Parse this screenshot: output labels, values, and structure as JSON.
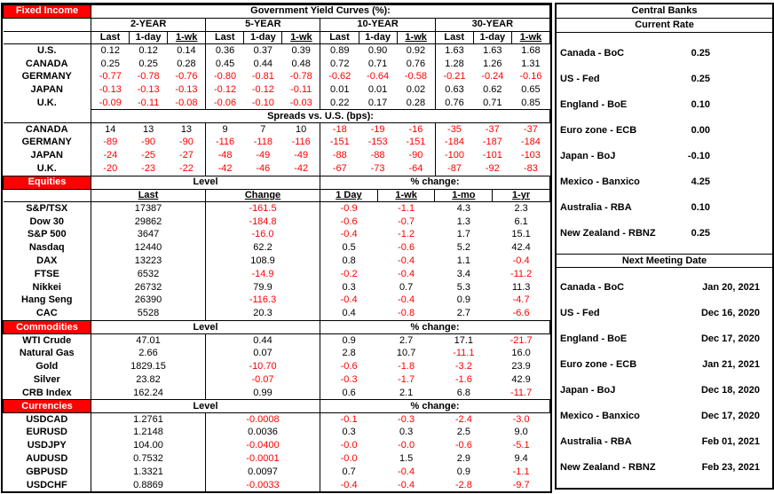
{
  "colors": {
    "section_header_bg": "#FF0000",
    "section_header_text": "#FFFFFF",
    "negative_value": "#FF0000",
    "border": "#000000"
  },
  "fixed_income": {
    "section_label": "Fixed Income",
    "title": "Government Yield Curves (%):",
    "groups": [
      "2-YEAR",
      "5-YEAR",
      "10-YEAR",
      "30-YEAR"
    ],
    "sub_headers": [
      "Last",
      "1-day",
      "1-wk"
    ],
    "rows": [
      {
        "label": "U.S.",
        "values": [
          "0.12",
          "0.12",
          "0.14",
          "0.36",
          "0.37",
          "0.39",
          "0.89",
          "0.90",
          "0.92",
          "1.63",
          "1.63",
          "1.68"
        ]
      },
      {
        "label": "CANADA",
        "values": [
          "0.25",
          "0.25",
          "0.28",
          "0.45",
          "0.44",
          "0.48",
          "0.72",
          "0.71",
          "0.76",
          "1.28",
          "1.26",
          "1.31"
        ]
      },
      {
        "label": "GERMANY",
        "values": [
          "-0.77",
          "-0.78",
          "-0.76",
          "-0.80",
          "-0.81",
          "-0.78",
          "-0.62",
          "-0.64",
          "-0.58",
          "-0.21",
          "-0.24",
          "-0.16"
        ]
      },
      {
        "label": "JAPAN",
        "values": [
          "-0.13",
          "-0.13",
          "-0.13",
          "-0.12",
          "-0.12",
          "-0.11",
          "0.01",
          "0.01",
          "0.02",
          "0.63",
          "0.62",
          "0.65"
        ]
      },
      {
        "label": "U.K.",
        "values": [
          "-0.09",
          "-0.11",
          "-0.08",
          "-0.06",
          "-0.10",
          "-0.03",
          "0.22",
          "0.17",
          "0.28",
          "0.76",
          "0.71",
          "0.85"
        ]
      }
    ],
    "spreads_title": "Spreads vs. U.S. (bps):",
    "spreads_rows": [
      {
        "label": "CANADA",
        "values": [
          "14",
          "13",
          "13",
          "9",
          "7",
          "10",
          "-18",
          "-19",
          "-16",
          "-35",
          "-37",
          "-37"
        ]
      },
      {
        "label": "GERMANY",
        "values": [
          "-89",
          "-90",
          "-90",
          "-116",
          "-118",
          "-116",
          "-151",
          "-153",
          "-151",
          "-184",
          "-187",
          "-184"
        ]
      },
      {
        "label": "JAPAN",
        "values": [
          "-24",
          "-25",
          "-27",
          "-48",
          "-49",
          "-49",
          "-88",
          "-88",
          "-90",
          "-100",
          "-101",
          "-103"
        ]
      },
      {
        "label": "U.K.",
        "values": [
          "-20",
          "-23",
          "-22",
          "-42",
          "-46",
          "-42",
          "-67",
          "-73",
          "-64",
          "-87",
          "-92",
          "-83"
        ]
      }
    ]
  },
  "equities": {
    "section_label": "Equities",
    "level_header": "Level",
    "pct_header": "% change:",
    "col_headers": [
      "Last",
      "Change",
      "1 Day",
      "1-wk",
      "1-mo",
      "1-yr"
    ],
    "rows": [
      {
        "label": "S&P/TSX",
        "values": [
          "17387",
          "-161.5",
          "-0.9",
          "-1.1",
          "4.3",
          "2.3"
        ]
      },
      {
        "label": "Dow 30",
        "values": [
          "29862",
          "-184.8",
          "-0.6",
          "-0.7",
          "1.3",
          "6.1"
        ]
      },
      {
        "label": "S&P 500",
        "values": [
          "3647",
          "-16.0",
          "-0.4",
          "-1.2",
          "1.7",
          "15.1"
        ]
      },
      {
        "label": "Nasdaq",
        "values": [
          "12440",
          "62.2",
          "0.5",
          "-0.6",
          "5.2",
          "42.4"
        ]
      },
      {
        "label": "DAX",
        "values": [
          "13223",
          "108.9",
          "0.8",
          "-0.4",
          "1.1",
          "-0.4"
        ]
      },
      {
        "label": "FTSE",
        "values": [
          "6532",
          "-14.9",
          "-0.2",
          "-0.4",
          "3.4",
          "-11.2"
        ]
      },
      {
        "label": "Nikkei",
        "values": [
          "26732",
          "79.9",
          "0.3",
          "0.7",
          "5.3",
          "11.3"
        ]
      },
      {
        "label": "Hang Seng",
        "values": [
          "26390",
          "-116.3",
          "-0.4",
          "-0.4",
          "0.9",
          "-4.7"
        ]
      },
      {
        "label": "CAC",
        "values": [
          "5528",
          "20.3",
          "0.4",
          "-0.8",
          "2.7",
          "-6.6"
        ]
      }
    ]
  },
  "commodities": {
    "section_label": "Commodities",
    "level_header": "Level",
    "pct_header": "% change:",
    "rows": [
      {
        "label": "WTI Crude",
        "values": [
          "47.01",
          "0.44",
          "0.9",
          "2.7",
          "17.1",
          "-21.7"
        ]
      },
      {
        "label": "Natural Gas",
        "values": [
          "2.66",
          "0.07",
          "2.8",
          "10.7",
          "-11.1",
          "16.0"
        ]
      },
      {
        "label": "Gold",
        "values": [
          "1829.15",
          "-10.70",
          "-0.6",
          "-1.8",
          "-3.2",
          "23.9"
        ]
      },
      {
        "label": "Silver",
        "values": [
          "23.82",
          "-0.07",
          "-0.3",
          "-1.7",
          "-1.6",
          "42.9"
        ]
      },
      {
        "label": "CRB Index",
        "values": [
          "162.24",
          "0.99",
          "0.6",
          "2.1",
          "6.8",
          "-11.7"
        ]
      }
    ]
  },
  "currencies": {
    "section_label": "Currencies",
    "level_header": "Level",
    "pct_header": "% change:",
    "rows": [
      {
        "label": "USDCAD",
        "values": [
          "1.2761",
          "-0.0008",
          "-0.1",
          "-0.3",
          "-2.4",
          "-3.0"
        ]
      },
      {
        "label": "EURUSD",
        "values": [
          "1.2148",
          "0.0036",
          "0.3",
          "0.3",
          "2.5",
          "9.0"
        ]
      },
      {
        "label": "USDJPY",
        "values": [
          "104.00",
          "-0.0400",
          "-0.0",
          "-0.0",
          "-0.6",
          "-5.1"
        ]
      },
      {
        "label": "AUDUSD",
        "values": [
          "0.7532",
          "-0.0001",
          "-0.0",
          "1.5",
          "2.9",
          "9.4"
        ]
      },
      {
        "label": "GBPUSD",
        "values": [
          "1.3321",
          "0.0097",
          "0.7",
          "-0.4",
          "0.9",
          "-1.1"
        ]
      },
      {
        "label": "USDCHF",
        "values": [
          "0.8869",
          "-0.0033",
          "-0.4",
          "-0.4",
          "-2.8",
          "-9.7"
        ]
      }
    ]
  },
  "central_banks": {
    "title": "Central Banks",
    "current_rate_header": "Current Rate",
    "rates": [
      {
        "name": "Canada - BoC",
        "value": "0.25"
      },
      {
        "name": "US - Fed",
        "value": "0.25"
      },
      {
        "name": "England - BoE",
        "value": "0.10"
      },
      {
        "name": "Euro zone - ECB",
        "value": "0.00"
      },
      {
        "name": "Japan - BoJ",
        "value": "-0.10"
      },
      {
        "name": "Mexico - Banxico",
        "value": "4.25"
      },
      {
        "name": "Australia - RBA",
        "value": "0.10"
      },
      {
        "name": "New Zealand - RBNZ",
        "value": "0.25"
      }
    ],
    "next_meeting_header": "Next Meeting Date",
    "meetings": [
      {
        "name": "Canada - BoC",
        "value": "Jan 20, 2021"
      },
      {
        "name": "US - Fed",
        "value": "Dec 16, 2020"
      },
      {
        "name": "England - BoE",
        "value": "Dec 17, 2020"
      },
      {
        "name": "Euro zone - ECB",
        "value": "Jan 21, 2021"
      },
      {
        "name": "Japan - BoJ",
        "value": "Dec 18, 2020"
      },
      {
        "name": "Mexico - Banxico",
        "value": "Dec 17, 2020"
      },
      {
        "name": "Australia - RBA",
        "value": "Feb 01, 2021"
      },
      {
        "name": "New Zealand - RBNZ",
        "value": "Feb 23, 2021"
      }
    ]
  }
}
